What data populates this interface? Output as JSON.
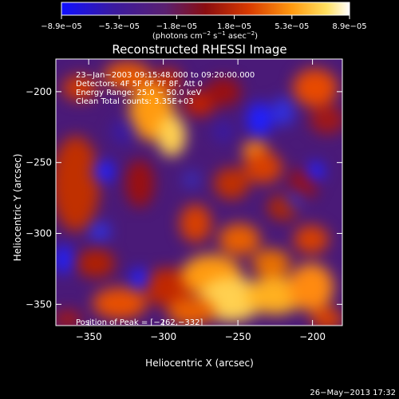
{
  "chart_data": {
    "type": "heatmap",
    "title": "Reconstructed RHESSI Image",
    "xlabel": "Heliocentric X (arcsec)",
    "ylabel": "Heliocentric Y (arcsec)",
    "xlim": [
      -372,
      -180
    ],
    "ylim": [
      -365,
      -177
    ],
    "x_ticks": [
      -350,
      -300,
      -250,
      -200
    ],
    "x_tick_labels": [
      "−350",
      "−300",
      "−250",
      "−200"
    ],
    "y_ticks": [
      -200,
      -250,
      -300,
      -350
    ],
    "y_tick_labels": [
      "−200",
      "−250",
      "−300",
      "−350"
    ],
    "colorbar": {
      "min": -8.9e-05,
      "max": 8.9e-05,
      "tick_labels": [
        "−8.9e−05",
        "−5.3e−05",
        "−1.8e−05",
        "1.8e−05",
        "5.3e−05",
        "8.9e−05"
      ],
      "units_text": "(photons cm",
      "units_exp1": "−2",
      "units_s": " s",
      "units_exp2": "−1",
      "units_asec": " asec",
      "units_exp3": "−2",
      "units_close": ")"
    },
    "annotations": {
      "line1": "23−Jan−2003 09:15:48.000 to 09:20:00.000",
      "line2": "Detectors: 4F 5F 6F 7F 8F, Att 0",
      "line3": "Energy Range: 25.0 − 50.0 keV",
      "line4": "Clean     Total counts: 3.35E+03",
      "peak": "Position of Peak = [−262,−332]"
    },
    "timestamp": "26−May−2013 17:32"
  }
}
